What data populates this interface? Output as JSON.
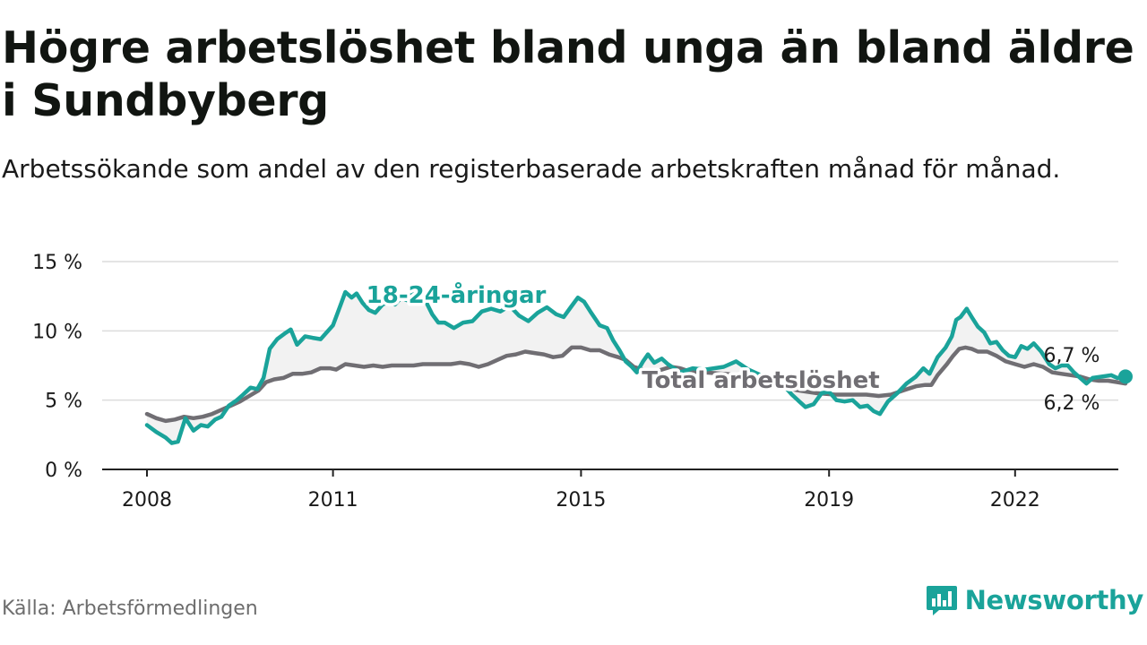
{
  "title": "Högre arbetslöshet bland unga än bland äldre i Sundbyberg",
  "subtitle": "Arbetssökande som andel av den registerbaserade arbetskraften månad för månad.",
  "source": "Källa: Arbetsförmedlingen",
  "brand": "Newsworthy",
  "colors": {
    "youth": "#1aa39a",
    "total": "#706e73",
    "band": "#f2f2f2",
    "grid": "#dcdcdc",
    "axis": "#222222",
    "text": "#1a1a1a"
  },
  "icons": {
    "brand": "bar-chart-speech-icon"
  },
  "chart_data": {
    "type": "line",
    "ylim": [
      0,
      15
    ],
    "xlim": [
      2008,
      2023
    ],
    "yticks": [
      0,
      5,
      10,
      15
    ],
    "ytick_labels": [
      "0 %",
      "5 %",
      "10 %",
      "15 %"
    ],
    "xticks": [
      2008,
      2011,
      2015,
      2019,
      2022
    ],
    "xtick_labels": [
      "2008",
      "2011",
      "2015",
      "2019",
      "2022"
    ],
    "grid": true,
    "series": [
      {
        "name": "18-24-åringar",
        "label": "18-24-åringar",
        "end_label": "6,7 %",
        "points": [
          [
            2008.0,
            3.2
          ],
          [
            2008.15,
            2.7
          ],
          [
            2008.3,
            2.3
          ],
          [
            2008.4,
            1.9
          ],
          [
            2008.5,
            2.0
          ],
          [
            2008.62,
            3.7
          ],
          [
            2008.75,
            2.8
          ],
          [
            2008.87,
            3.2
          ],
          [
            2008.98,
            3.1
          ],
          [
            2009.1,
            3.6
          ],
          [
            2009.2,
            3.8
          ],
          [
            2009.32,
            4.6
          ],
          [
            2009.45,
            5.0
          ],
          [
            2009.55,
            5.4
          ],
          [
            2009.67,
            5.9
          ],
          [
            2009.78,
            5.8
          ],
          [
            2009.88,
            6.6
          ],
          [
            2009.98,
            8.7
          ],
          [
            2010.1,
            9.4
          ],
          [
            2010.22,
            9.8
          ],
          [
            2010.32,
            10.1
          ],
          [
            2010.42,
            9.0
          ],
          [
            2010.55,
            9.6
          ],
          [
            2010.67,
            9.5
          ],
          [
            2010.8,
            9.4
          ],
          [
            2010.9,
            9.9
          ],
          [
            2011.0,
            10.4
          ],
          [
            2011.1,
            11.6
          ],
          [
            2011.2,
            12.8
          ],
          [
            2011.3,
            12.4
          ],
          [
            2011.38,
            12.7
          ],
          [
            2011.48,
            12.0
          ],
          [
            2011.58,
            11.5
          ],
          [
            2011.68,
            11.3
          ],
          [
            2011.8,
            11.9
          ],
          [
            2011.9,
            12.1
          ],
          [
            2012.0,
            11.9
          ],
          [
            2012.1,
            12.4
          ],
          [
            2012.2,
            12.2
          ],
          [
            2012.3,
            12.8
          ],
          [
            2012.4,
            13.1
          ],
          [
            2012.5,
            12.1
          ],
          [
            2012.6,
            11.2
          ],
          [
            2012.7,
            10.6
          ],
          [
            2012.8,
            10.6
          ],
          [
            2012.95,
            10.2
          ],
          [
            2013.1,
            10.6
          ],
          [
            2013.25,
            10.7
          ],
          [
            2013.4,
            11.4
          ],
          [
            2013.55,
            11.6
          ],
          [
            2013.7,
            11.4
          ],
          [
            2013.85,
            11.8
          ],
          [
            2014.0,
            11.1
          ],
          [
            2014.15,
            10.7
          ],
          [
            2014.3,
            11.3
          ],
          [
            2014.45,
            11.7
          ],
          [
            2014.6,
            11.2
          ],
          [
            2014.72,
            11.0
          ],
          [
            2014.85,
            11.8
          ],
          [
            2014.95,
            12.4
          ],
          [
            2015.05,
            12.1
          ],
          [
            2015.15,
            11.4
          ],
          [
            2015.3,
            10.4
          ],
          [
            2015.42,
            10.2
          ],
          [
            2015.52,
            9.3
          ],
          [
            2015.62,
            8.6
          ],
          [
            2015.72,
            7.8
          ],
          [
            2015.82,
            7.4
          ],
          [
            2015.9,
            7.0
          ],
          [
            2016.0,
            7.8
          ],
          [
            2016.08,
            8.3
          ],
          [
            2016.18,
            7.7
          ],
          [
            2016.3,
            8.0
          ],
          [
            2016.4,
            7.6
          ],
          [
            2016.5,
            7.3
          ],
          [
            2016.6,
            7.0
          ],
          [
            2016.8,
            7.3
          ],
          [
            2017.0,
            7.2
          ],
          [
            2017.3,
            7.4
          ],
          [
            2017.5,
            7.8
          ],
          [
            2017.7,
            7.2
          ],
          [
            2018.0,
            6.6
          ],
          [
            2018.2,
            6.4
          ],
          [
            2018.4,
            5.4
          ],
          [
            2018.52,
            4.9
          ],
          [
            2018.62,
            4.5
          ],
          [
            2018.75,
            4.7
          ],
          [
            2018.88,
            5.5
          ],
          [
            2019.0,
            5.6
          ],
          [
            2019.12,
            5.0
          ],
          [
            2019.25,
            4.9
          ],
          [
            2019.38,
            5.0
          ],
          [
            2019.5,
            4.5
          ],
          [
            2019.62,
            4.6
          ],
          [
            2019.72,
            4.2
          ],
          [
            2019.82,
            4.0
          ],
          [
            2019.95,
            4.9
          ],
          [
            2020.1,
            5.5
          ],
          [
            2020.25,
            6.2
          ],
          [
            2020.4,
            6.7
          ],
          [
            2020.52,
            7.3
          ],
          [
            2020.62,
            6.9
          ],
          [
            2020.75,
            8.1
          ],
          [
            2020.88,
            8.8
          ],
          [
            2020.98,
            9.6
          ],
          [
            2021.05,
            10.8
          ],
          [
            2021.12,
            11.0
          ],
          [
            2021.22,
            11.6
          ],
          [
            2021.3,
            11.0
          ],
          [
            2021.4,
            10.3
          ],
          [
            2021.5,
            9.9
          ],
          [
            2021.6,
            9.1
          ],
          [
            2021.7,
            9.2
          ],
          [
            2021.8,
            8.6
          ],
          [
            2021.9,
            8.2
          ],
          [
            2022.0,
            8.1
          ],
          [
            2022.1,
            8.9
          ],
          [
            2022.2,
            8.7
          ],
          [
            2022.3,
            9.1
          ],
          [
            2022.42,
            8.5
          ],
          [
            2022.55,
            7.6
          ],
          [
            2022.65,
            7.3
          ],
          [
            2022.75,
            7.5
          ],
          [
            2022.85,
            7.5
          ],
          [
            2022.95,
            7.0
          ],
          [
            2023.05,
            6.6
          ],
          [
            2023.15,
            6.2
          ],
          [
            2023.25,
            6.6
          ],
          [
            2023.4,
            6.7
          ],
          [
            2023.55,
            6.8
          ],
          [
            2023.65,
            6.6
          ],
          [
            2023.78,
            6.7
          ]
        ]
      },
      {
        "name": "Total arbetslöshet",
        "label": "Total arbetslöshet",
        "end_label": "6,2 %",
        "points": [
          [
            2008.0,
            4.0
          ],
          [
            2008.15,
            3.7
          ],
          [
            2008.3,
            3.5
          ],
          [
            2008.45,
            3.6
          ],
          [
            2008.6,
            3.8
          ],
          [
            2008.75,
            3.7
          ],
          [
            2008.9,
            3.8
          ],
          [
            2009.05,
            4.0
          ],
          [
            2009.2,
            4.3
          ],
          [
            2009.35,
            4.6
          ],
          [
            2009.5,
            4.9
          ],
          [
            2009.65,
            5.3
          ],
          [
            2009.8,
            5.7
          ],
          [
            2009.92,
            6.3
          ],
          [
            2010.05,
            6.5
          ],
          [
            2010.2,
            6.6
          ],
          [
            2010.35,
            6.9
          ],
          [
            2010.5,
            6.9
          ],
          [
            2010.65,
            7.0
          ],
          [
            2010.8,
            7.3
          ],
          [
            2010.95,
            7.3
          ],
          [
            2011.05,
            7.2
          ],
          [
            2011.2,
            7.6
          ],
          [
            2011.35,
            7.5
          ],
          [
            2011.5,
            7.4
          ],
          [
            2011.65,
            7.5
          ],
          [
            2011.8,
            7.4
          ],
          [
            2011.95,
            7.5
          ],
          [
            2012.1,
            7.5
          ],
          [
            2012.3,
            7.5
          ],
          [
            2012.45,
            7.6
          ],
          [
            2012.6,
            7.6
          ],
          [
            2012.75,
            7.6
          ],
          [
            2012.9,
            7.6
          ],
          [
            2013.05,
            7.7
          ],
          [
            2013.2,
            7.6
          ],
          [
            2013.35,
            7.4
          ],
          [
            2013.5,
            7.6
          ],
          [
            2013.65,
            7.9
          ],
          [
            2013.8,
            8.2
          ],
          [
            2013.95,
            8.3
          ],
          [
            2014.1,
            8.5
          ],
          [
            2014.25,
            8.4
          ],
          [
            2014.4,
            8.3
          ],
          [
            2014.55,
            8.1
          ],
          [
            2014.7,
            8.2
          ],
          [
            2014.85,
            8.8
          ],
          [
            2015.0,
            8.8
          ],
          [
            2015.15,
            8.6
          ],
          [
            2015.3,
            8.6
          ],
          [
            2015.45,
            8.3
          ],
          [
            2015.6,
            8.1
          ],
          [
            2015.72,
            7.9
          ],
          [
            2015.85,
            7.4
          ],
          [
            2016.0,
            7.2
          ],
          [
            2016.15,
            7.0
          ],
          [
            2016.3,
            7.2
          ],
          [
            2016.45,
            7.4
          ],
          [
            2016.6,
            7.3
          ],
          [
            2016.8,
            7.0
          ],
          [
            2017.0,
            7.0
          ],
          [
            2017.3,
            6.9
          ],
          [
            2017.6,
            6.8
          ],
          [
            2017.9,
            6.5
          ],
          [
            2018.2,
            6.0
          ],
          [
            2018.5,
            5.7
          ],
          [
            2018.8,
            5.5
          ],
          [
            2019.1,
            5.4
          ],
          [
            2019.4,
            5.4
          ],
          [
            2019.6,
            5.4
          ],
          [
            2019.8,
            5.3
          ],
          [
            2020.0,
            5.4
          ],
          [
            2020.2,
            5.7
          ],
          [
            2020.4,
            6.0
          ],
          [
            2020.55,
            6.1
          ],
          [
            2020.65,
            6.1
          ],
          [
            2020.75,
            6.8
          ],
          [
            2020.9,
            7.6
          ],
          [
            2021.0,
            8.2
          ],
          [
            2021.1,
            8.7
          ],
          [
            2021.2,
            8.8
          ],
          [
            2021.3,
            8.7
          ],
          [
            2021.4,
            8.5
          ],
          [
            2021.55,
            8.5
          ],
          [
            2021.7,
            8.2
          ],
          [
            2021.85,
            7.8
          ],
          [
            2022.0,
            7.6
          ],
          [
            2022.15,
            7.4
          ],
          [
            2022.3,
            7.6
          ],
          [
            2022.45,
            7.4
          ],
          [
            2022.6,
            7.0
          ],
          [
            2022.75,
            6.9
          ],
          [
            2022.9,
            6.8
          ],
          [
            2023.05,
            6.7
          ],
          [
            2023.2,
            6.5
          ],
          [
            2023.35,
            6.4
          ],
          [
            2023.5,
            6.4
          ],
          [
            2023.65,
            6.3
          ],
          [
            2023.78,
            6.2
          ]
        ]
      }
    ]
  }
}
